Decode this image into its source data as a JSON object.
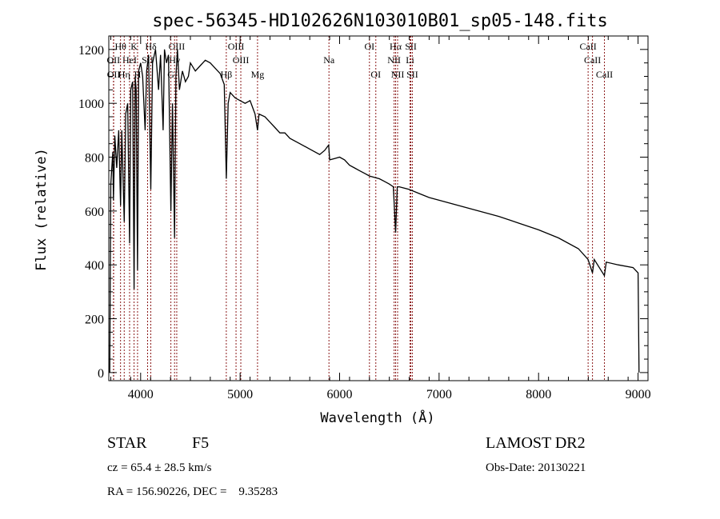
{
  "chart_data": {
    "type": "line",
    "title": "spec-56345-HD102626N103010B01_sp05-148.fits",
    "xlabel": "Wavelength (Å)",
    "ylabel": "Flux (relative)",
    "xlim": [
      3680,
      9100
    ],
    "ylim": [
      -30,
      1250
    ],
    "xticks": [
      4000,
      5000,
      6000,
      7000,
      8000,
      9000
    ],
    "yticks": [
      0,
      200,
      400,
      600,
      800,
      1000,
      1200
    ],
    "grid": false,
    "series": [
      {
        "name": "spectrum",
        "points": [
          [
            3690,
            0
          ],
          [
            3700,
            700
          ],
          [
            3720,
            820
          ],
          [
            3727,
            640
          ],
          [
            3740,
            880
          ],
          [
            3760,
            760
          ],
          [
            3780,
            900
          ],
          [
            3798,
            620
          ],
          [
            3810,
            900
          ],
          [
            3835,
            560
          ],
          [
            3850,
            960
          ],
          [
            3870,
            1000
          ],
          [
            3889,
            480
          ],
          [
            3900,
            1050
          ],
          [
            3920,
            1080
          ],
          [
            3934,
            310
          ],
          [
            3945,
            1100
          ],
          [
            3955,
            1050
          ],
          [
            3969,
            380
          ],
          [
            3980,
            1120
          ],
          [
            4000,
            1150
          ],
          [
            4020,
            1100
          ],
          [
            4045,
            900
          ],
          [
            4060,
            1120
          ],
          [
            4080,
            1180
          ],
          [
            4102,
            680
          ],
          [
            4120,
            1150
          ],
          [
            4150,
            1200
          ],
          [
            4180,
            1050
          ],
          [
            4200,
            1180
          ],
          [
            4226,
            900
          ],
          [
            4240,
            1200
          ],
          [
            4260,
            1150
          ],
          [
            4280,
            1180
          ],
          [
            4304,
            600
          ],
          [
            4320,
            1000
          ],
          [
            4341,
            500
          ],
          [
            4355,
            1100
          ],
          [
            4370,
            1200
          ],
          [
            4390,
            1050
          ],
          [
            4420,
            1120
          ],
          [
            4450,
            1080
          ],
          [
            4480,
            1100
          ],
          [
            4500,
            1150
          ],
          [
            4550,
            1120
          ],
          [
            4600,
            1140
          ],
          [
            4650,
            1160
          ],
          [
            4700,
            1150
          ],
          [
            4750,
            1130
          ],
          [
            4800,
            1110
          ],
          [
            4840,
            1070
          ],
          [
            4861,
            720
          ],
          [
            4880,
            1000
          ],
          [
            4900,
            1040
          ],
          [
            4950,
            1020
          ],
          [
            5000,
            1010
          ],
          [
            5050,
            1000
          ],
          [
            5100,
            1010
          ],
          [
            5150,
            960
          ],
          [
            5175,
            900
          ],
          [
            5190,
            960
          ],
          [
            5250,
            950
          ],
          [
            5300,
            930
          ],
          [
            5350,
            910
          ],
          [
            5400,
            890
          ],
          [
            5450,
            890
          ],
          [
            5500,
            870
          ],
          [
            5600,
            850
          ],
          [
            5700,
            830
          ],
          [
            5800,
            810
          ],
          [
            5850,
            825
          ],
          [
            5890,
            845
          ],
          [
            5900,
            790
          ],
          [
            5950,
            795
          ],
          [
            6000,
            800
          ],
          [
            6050,
            790
          ],
          [
            6100,
            770
          ],
          [
            6150,
            760
          ],
          [
            6200,
            750
          ],
          [
            6250,
            740
          ],
          [
            6300,
            730
          ],
          [
            6400,
            720
          ],
          [
            6450,
            710
          ],
          [
            6500,
            700
          ],
          [
            6540,
            690
          ],
          [
            6563,
            520
          ],
          [
            6580,
            690
          ],
          [
            6600,
            690
          ],
          [
            6700,
            680
          ],
          [
            6800,
            665
          ],
          [
            6900,
            650
          ],
          [
            7000,
            640
          ],
          [
            7200,
            620
          ],
          [
            7400,
            600
          ],
          [
            7600,
            580
          ],
          [
            7800,
            555
          ],
          [
            8000,
            530
          ],
          [
            8200,
            500
          ],
          [
            8400,
            460
          ],
          [
            8498,
            420
          ],
          [
            8542,
            370
          ],
          [
            8560,
            420
          ],
          [
            8662,
            360
          ],
          [
            8680,
            410
          ],
          [
            8800,
            400
          ],
          [
            8950,
            390
          ],
          [
            9000,
            370
          ],
          [
            9010,
            0
          ]
        ]
      }
    ],
    "line_markers": [
      {
        "label": "Hθ",
        "wavelength": 3798,
        "row": 0
      },
      {
        "label": "K",
        "wavelength": 3934,
        "row": 0
      },
      {
        "label": "Hδ",
        "wavelength": 4102,
        "row": 0
      },
      {
        "label": "OIII",
        "wavelength": 4363,
        "row": 0
      },
      {
        "label": "OIII",
        "wavelength": 4959,
        "row": 0
      },
      {
        "label": "OI",
        "wavelength": 6300,
        "row": 0
      },
      {
        "label": "Hα",
        "wavelength": 6563,
        "row": 0
      },
      {
        "label": "SII",
        "wavelength": 6716,
        "row": 0
      },
      {
        "label": "CaII",
        "wavelength": 8498,
        "row": 0
      },
      {
        "label": "OII",
        "wavelength": 3727,
        "row": 1
      },
      {
        "label": "HeI",
        "wavelength": 3889,
        "row": 1
      },
      {
        "label": "SII",
        "wavelength": 4070,
        "row": 1
      },
      {
        "label": "Hγ",
        "wavelength": 4341,
        "row": 1
      },
      {
        "label": "OIII",
        "wavelength": 5007,
        "row": 1
      },
      {
        "label": "Na",
        "wavelength": 5893,
        "row": 1
      },
      {
        "label": "NII",
        "wavelength": 6548,
        "row": 1
      },
      {
        "label": "Li",
        "wavelength": 6708,
        "row": 1
      },
      {
        "label": "CaII",
        "wavelength": 8542,
        "row": 1
      },
      {
        "label": "OII",
        "wavelength": 3729,
        "row": 2
      },
      {
        "label": "Hη",
        "wavelength": 3835,
        "row": 2
      },
      {
        "label": "H",
        "wavelength": 3969,
        "row": 2
      },
      {
        "label": "G",
        "wavelength": 4304,
        "row": 2
      },
      {
        "label": "Hβ",
        "wavelength": 4861,
        "row": 2
      },
      {
        "label": "Mg",
        "wavelength": 5175,
        "row": 2
      },
      {
        "label": "OI",
        "wavelength": 6364,
        "row": 2
      },
      {
        "label": "NII",
        "wavelength": 6583,
        "row": 2
      },
      {
        "label": "SII",
        "wavelength": 6731,
        "row": 2
      },
      {
        "label": "CaII",
        "wavelength": 8662,
        "row": 2
      }
    ],
    "colors": {
      "spectrum": "#000000",
      "markers": "#8b1a1a"
    }
  },
  "info": {
    "object_class": "STAR",
    "subclass": "F5",
    "survey": "LAMOST DR2",
    "redshift": "cz = 65.4 ± 28.5 km/s",
    "obs_date": "Obs-Date: 20130221",
    "coords": "RA = 156.90226, DEC =    9.35283"
  }
}
